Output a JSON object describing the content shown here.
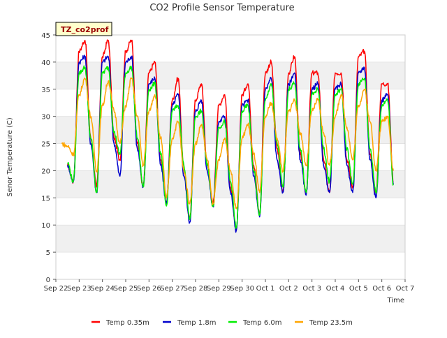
{
  "chart_data": {
    "type": "line",
    "title": "CO2 Profile Sensor Temperature",
    "xlabel": "Time",
    "ylabel": "Senor Temperature (C)",
    "site_tag": "TZ_co2prof",
    "x_tick_labels": [
      "Sep 22",
      "Sep 23",
      "Sep 24",
      "Sep 25",
      "Sep 26",
      "Sep 27",
      "Sep 28",
      "Sep 29",
      "Sep 30",
      "Oct 1",
      "Oct 2",
      "Oct 3",
      "Oct 4",
      "Oct 5",
      "Oct 6",
      "Oct 7"
    ],
    "y_ticks": [
      0,
      5,
      10,
      15,
      20,
      25,
      30,
      35,
      40,
      45
    ],
    "xlim": [
      "Sep 22",
      "Oct 7"
    ],
    "ylim": [
      0,
      45
    ],
    "grid": "horizontal bands",
    "legend_position": "bottom",
    "series": [
      {
        "name": "Temp 0.35m",
        "color": "#ff0000",
        "x": [
          "Sep 22 12:00",
          "Sep 22 18:00",
          "Sep 23 00:00",
          "Sep 23 06:00",
          "Sep 23 12:00",
          "Sep 23 18:00",
          "Sep 24 00:00",
          "Sep 24 06:00",
          "Sep 24 12:00",
          "Sep 24 18:00",
          "Sep 25 00:00",
          "Sep 25 06:00",
          "Sep 25 12:00",
          "Sep 25 18:00",
          "Sep 26 00:00",
          "Sep 26 06:00",
          "Sep 26 12:00",
          "Sep 26 18:00",
          "Sep 27 00:00",
          "Sep 27 06:00",
          "Sep 27 12:00",
          "Sep 27 18:00",
          "Sep 28 00:00",
          "Sep 28 06:00",
          "Sep 28 12:00",
          "Sep 28 18:00",
          "Sep 29 00:00",
          "Sep 29 06:00",
          "Sep 29 12:00",
          "Sep 29 18:00",
          "Sep 30 00:00",
          "Sep 30 06:00",
          "Sep 30 12:00",
          "Sep 30 18:00",
          "Oct 1 00:00",
          "Oct 1 06:00",
          "Oct 1 12:00",
          "Oct 1 18:00",
          "Oct 2 00:00",
          "Oct 2 06:00",
          "Oct 2 12:00",
          "Oct 2 18:00",
          "Oct 3 00:00",
          "Oct 3 06:00",
          "Oct 3 12:00",
          "Oct 3 18:00",
          "Oct 4 00:00",
          "Oct 4 06:00",
          "Oct 4 12:00",
          "Oct 4 18:00",
          "Oct 5 00:00",
          "Oct 5 06:00",
          "Oct 5 12:00",
          "Oct 5 18:00",
          "Oct 6 00:00",
          "Oct 6 06:00",
          "Oct 6 12:00"
        ],
        "y": [
          21,
          18,
          42,
          44,
          26,
          17,
          41,
          44,
          26,
          22,
          42,
          44,
          25,
          17,
          38,
          40,
          22,
          14,
          33,
          37,
          20,
          11,
          33,
          36,
          21,
          14,
          32,
          34,
          17,
          9,
          34,
          36,
          21,
          12,
          38,
          40,
          24,
          16,
          38,
          41,
          23,
          16,
          38,
          38,
          22,
          16,
          38,
          38,
          22,
          17,
          41,
          42,
          23,
          16,
          36,
          36,
          18
        ]
      },
      {
        "name": "Temp 1.8m",
        "color": "#0000cc",
        "x": [
          "Sep 22 12:00",
          "Sep 22 18:00",
          "Sep 23 00:00",
          "Sep 23 06:00",
          "Sep 23 12:00",
          "Sep 23 18:00",
          "Sep 24 00:00",
          "Sep 24 06:00",
          "Sep 24 12:00",
          "Sep 24 18:00",
          "Sep 25 00:00",
          "Sep 25 06:00",
          "Sep 25 12:00",
          "Sep 25 18:00",
          "Sep 26 00:00",
          "Sep 26 06:00",
          "Sep 26 12:00",
          "Sep 26 18:00",
          "Sep 27 00:00",
          "Sep 27 06:00",
          "Sep 27 12:00",
          "Sep 27 18:00",
          "Sep 28 00:00",
          "Sep 28 06:00",
          "Sep 28 12:00",
          "Sep 28 18:00",
          "Sep 29 00:00",
          "Sep 29 06:00",
          "Sep 29 12:00",
          "Sep 29 18:00",
          "Sep 30 00:00",
          "Sep 30 06:00",
          "Sep 30 12:00",
          "Sep 30 18:00",
          "Oct 1 00:00",
          "Oct 1 06:00",
          "Oct 1 12:00",
          "Oct 1 18:00",
          "Oct 2 00:00",
          "Oct 2 06:00",
          "Oct 2 12:00",
          "Oct 2 18:00",
          "Oct 3 00:00",
          "Oct 3 06:00",
          "Oct 3 12:00",
          "Oct 3 18:00",
          "Oct 4 00:00",
          "Oct 4 06:00",
          "Oct 4 12:00",
          "Oct 4 18:00",
          "Oct 5 00:00",
          "Oct 5 06:00",
          "Oct 5 12:00",
          "Oct 5 18:00",
          "Oct 6 00:00",
          "Oct 6 06:00",
          "Oct 6 12:00"
        ],
        "y": [
          21,
          18,
          40,
          41,
          25,
          16,
          40,
          41,
          25,
          19,
          40,
          41,
          24,
          17,
          36,
          37,
          21,
          14,
          32,
          34,
          19,
          10.5,
          31,
          33,
          20,
          13.5,
          29,
          30,
          16,
          9,
          32,
          33,
          19,
          11.5,
          35,
          37,
          22,
          16,
          36,
          38,
          22,
          15.5,
          35,
          36,
          21,
          16,
          35,
          36,
          21,
          16,
          38,
          39,
          22,
          15,
          33,
          34,
          17.5
        ]
      },
      {
        "name": "Temp 6.0m",
        "color": "#00ee00",
        "x": [
          "Sep 22 12:00",
          "Sep 22 18:00",
          "Sep 23 00:00",
          "Sep 23 06:00",
          "Sep 23 12:00",
          "Sep 23 18:00",
          "Sep 24 00:00",
          "Sep 24 06:00",
          "Sep 24 12:00",
          "Sep 24 18:00",
          "Sep 25 00:00",
          "Sep 25 06:00",
          "Sep 25 12:00",
          "Sep 25 18:00",
          "Sep 26 00:00",
          "Sep 26 06:00",
          "Sep 26 12:00",
          "Sep 26 18:00",
          "Sep 27 00:00",
          "Sep 27 06:00",
          "Sep 27 12:00",
          "Sep 27 18:00",
          "Sep 28 00:00",
          "Sep 28 06:00",
          "Sep 28 12:00",
          "Sep 28 18:00",
          "Sep 29 00:00",
          "Sep 29 06:00",
          "Sep 29 12:00",
          "Sep 29 18:00",
          "Sep 30 00:00",
          "Sep 30 06:00",
          "Sep 30 12:00",
          "Sep 30 18:00",
          "Oct 1 00:00",
          "Oct 1 06:00",
          "Oct 1 12:00",
          "Oct 1 18:00",
          "Oct 2 00:00",
          "Oct 2 06:00",
          "Oct 2 12:00",
          "Oct 2 18:00",
          "Oct 3 00:00",
          "Oct 3 06:00",
          "Oct 3 12:00",
          "Oct 3 18:00",
          "Oct 4 00:00",
          "Oct 4 06:00",
          "Oct 4 12:00",
          "Oct 4 18:00",
          "Oct 5 00:00",
          "Oct 5 06:00",
          "Oct 5 12:00",
          "Oct 5 18:00",
          "Oct 6 00:00",
          "Oct 6 06:00",
          "Oct 6 12:00"
        ],
        "y": [
          21.5,
          18,
          38,
          39,
          26,
          16,
          38,
          39,
          27,
          23,
          38,
          39,
          26,
          17,
          35,
          36,
          23,
          13.5,
          31,
          32,
          21,
          11,
          30,
          31,
          21,
          13.5,
          28,
          29,
          18,
          9.5,
          31,
          32,
          20,
          12,
          33,
          36,
          25,
          17,
          35,
          36,
          24,
          16,
          34,
          35,
          24,
          18,
          34,
          35,
          24,
          17.5,
          36,
          37,
          24,
          16,
          32,
          33,
          17.5
        ]
      },
      {
        "name": "Temp 23.5m",
        "color": "#ffa500",
        "x": [
          "Sep 22 06:00",
          "Sep 22 12:00",
          "Sep 22 18:00",
          "Sep 23 00:00",
          "Sep 23 06:00",
          "Sep 23 12:00",
          "Sep 23 18:00",
          "Sep 24 00:00",
          "Sep 24 06:00",
          "Sep 24 12:00",
          "Sep 24 18:00",
          "Sep 25 00:00",
          "Sep 25 06:00",
          "Sep 25 12:00",
          "Sep 25 18:00",
          "Sep 26 00:00",
          "Sep 26 06:00",
          "Sep 26 12:00",
          "Sep 26 18:00",
          "Sep 27 00:00",
          "Sep 27 06:00",
          "Sep 27 12:00",
          "Sep 27 18:00",
          "Sep 28 00:00",
          "Sep 28 06:00",
          "Sep 28 12:00",
          "Sep 28 18:00",
          "Sep 29 00:00",
          "Sep 29 06:00",
          "Sep 29 12:00",
          "Sep 29 18:00",
          "Sep 30 00:00",
          "Sep 30 06:00",
          "Sep 30 12:00",
          "Sep 30 18:00",
          "Oct 1 00:00",
          "Oct 1 06:00",
          "Oct 1 12:00",
          "Oct 1 18:00",
          "Oct 2 00:00",
          "Oct 2 06:00",
          "Oct 2 12:00",
          "Oct 2 18:00",
          "Oct 3 00:00",
          "Oct 3 06:00",
          "Oct 3 12:00",
          "Oct 3 18:00",
          "Oct 4 00:00",
          "Oct 4 06:00",
          "Oct 4 12:00",
          "Oct 4 18:00",
          "Oct 5 00:00",
          "Oct 5 06:00",
          "Oct 5 12:00",
          "Oct 5 18:00",
          "Oct 6 00:00",
          "Oct 6 06:00",
          "Oct 6 12:00"
        ],
        "y": [
          25,
          24.5,
          23,
          34,
          37,
          30,
          20,
          32,
          36.5,
          31,
          25,
          32,
          37,
          30,
          21,
          31,
          34,
          26,
          15,
          26,
          29,
          20,
          14,
          25,
          28.5,
          22,
          14,
          22,
          26,
          20,
          13,
          26,
          28.5,
          23,
          16,
          30,
          32.5,
          26,
          20,
          31,
          33,
          27,
          21,
          31,
          33,
          27,
          21,
          30,
          34,
          28,
          22,
          32,
          35,
          29,
          20,
          29,
          30,
          20
        ]
      }
    ]
  }
}
